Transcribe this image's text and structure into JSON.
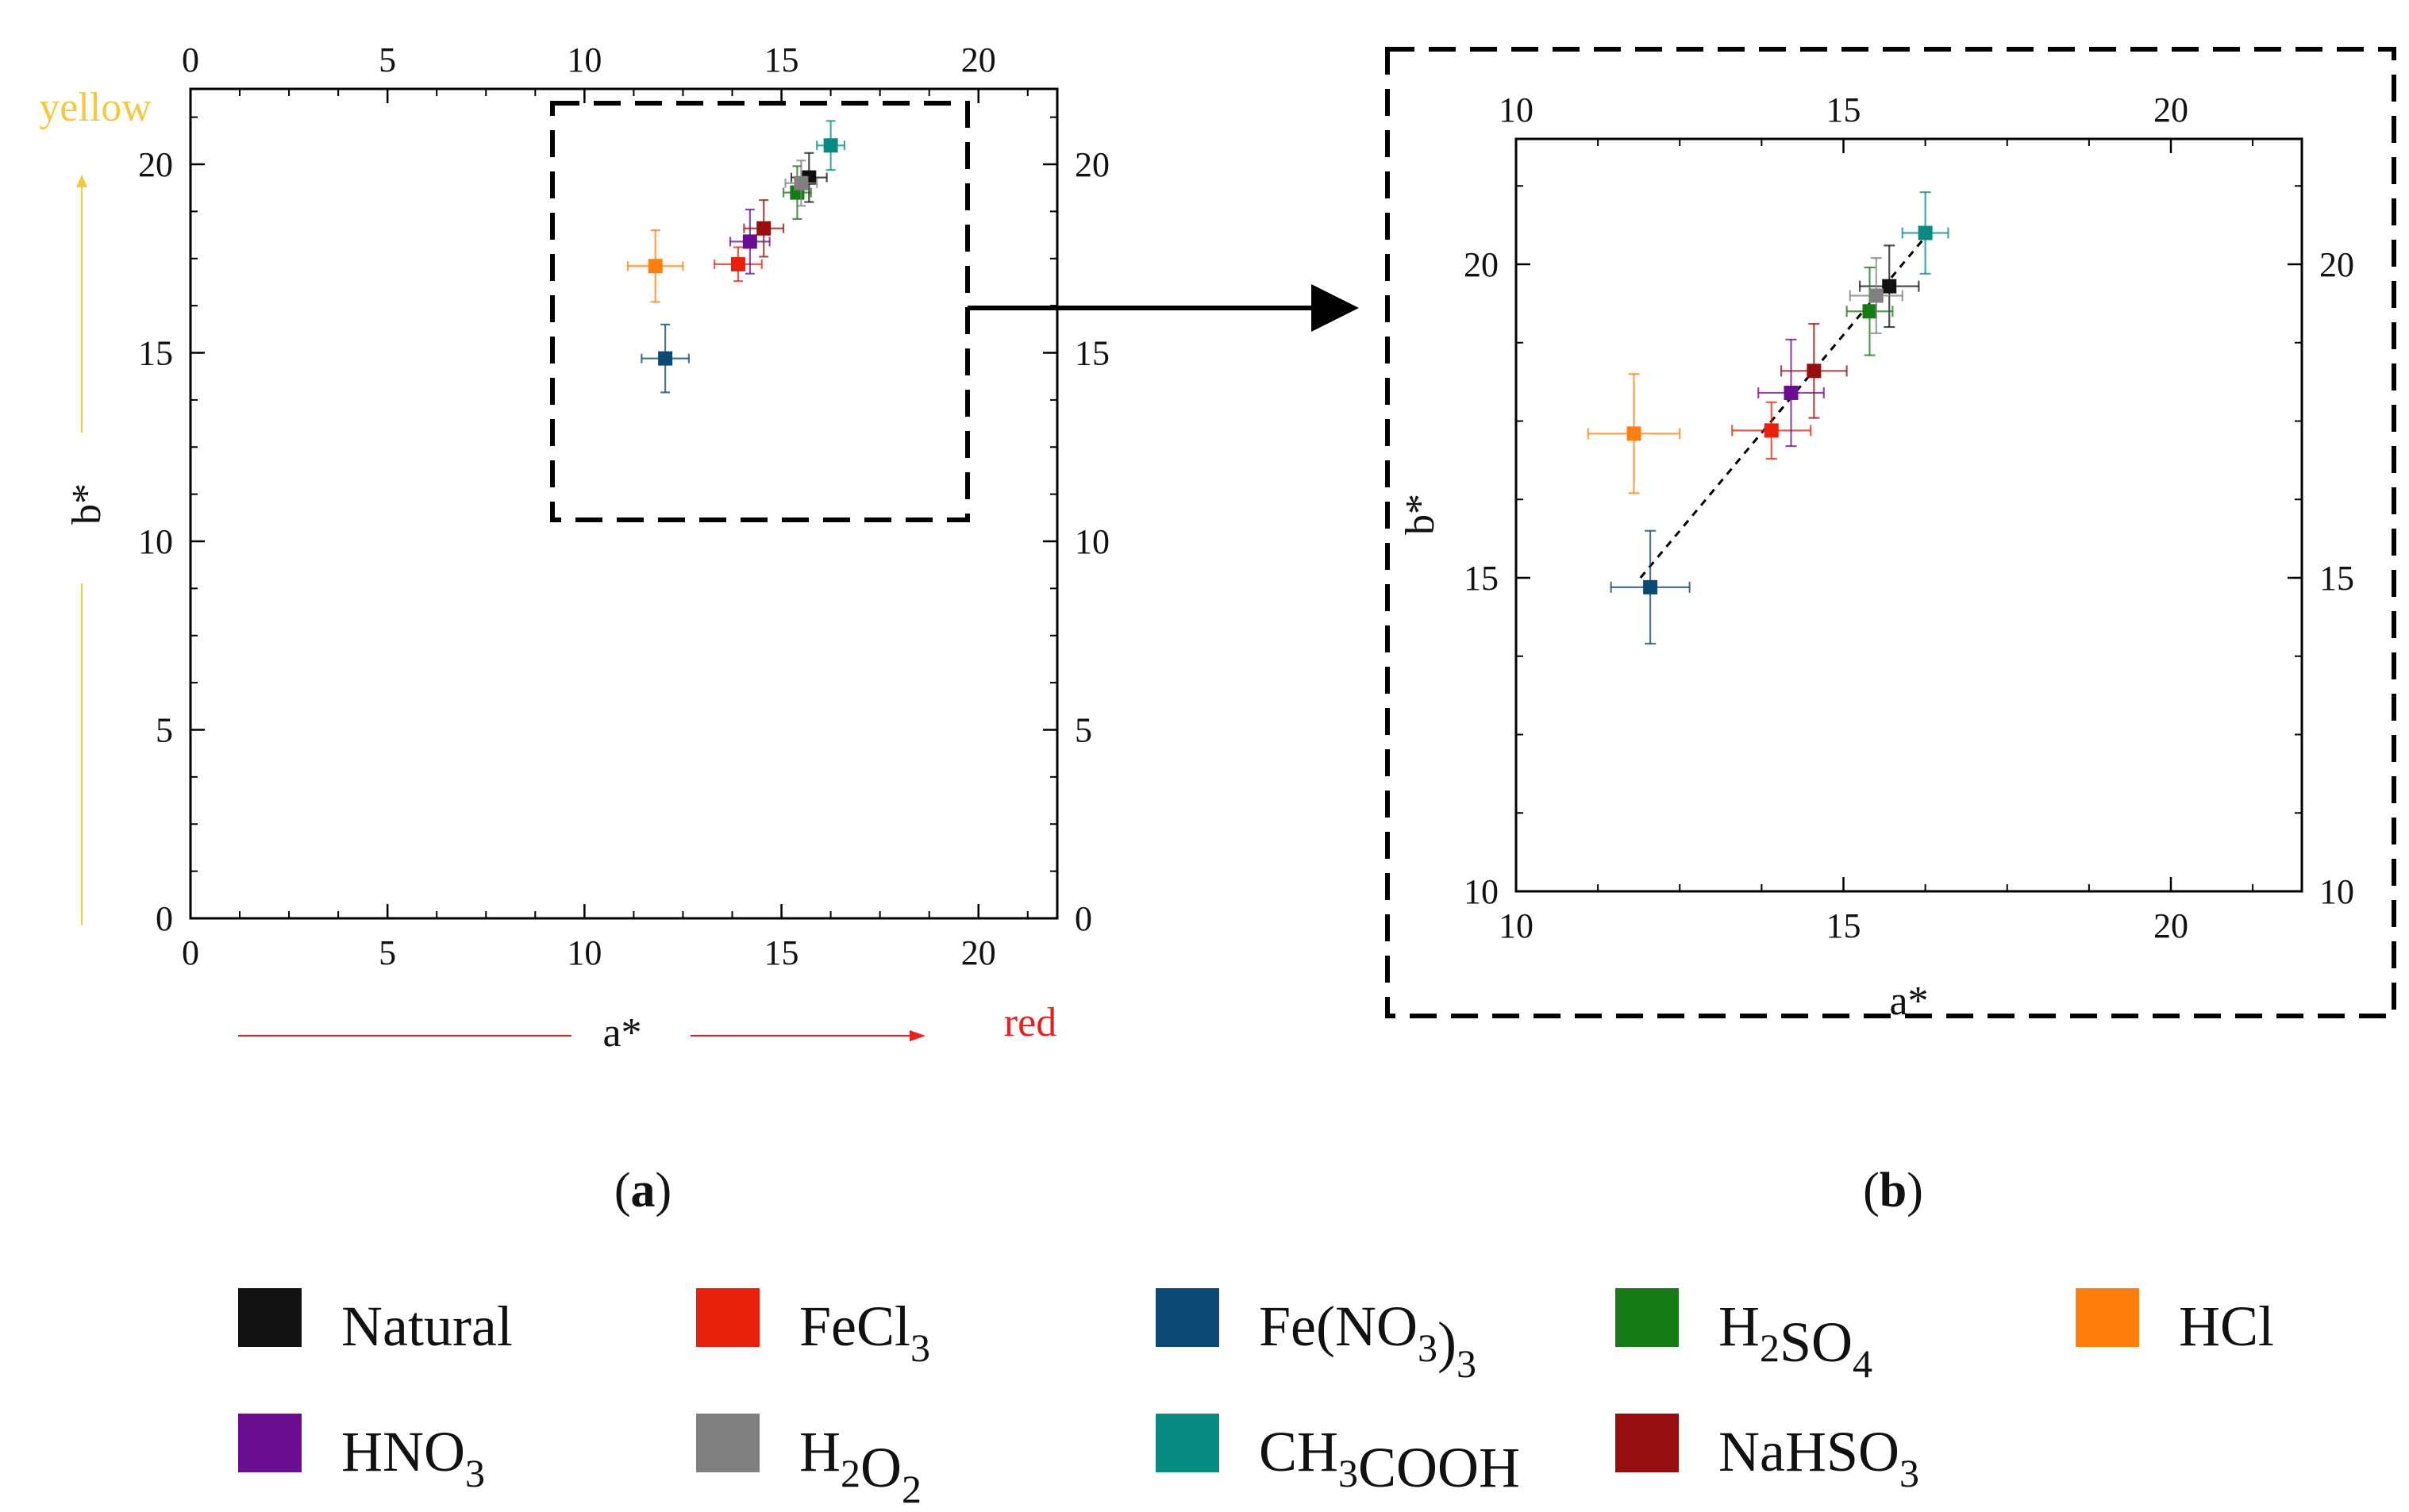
{
  "chart_data": [
    {
      "panel": "a",
      "label_open": "(",
      "label_letter": "a",
      "label_close": ")",
      "type": "scatter",
      "xlabel": "a*",
      "ylabel": "b*",
      "xlim": [
        0,
        22
      ],
      "ylim": [
        0,
        22
      ],
      "xticks": [
        0,
        5,
        10,
        15,
        20
      ],
      "yticks": [
        0,
        5,
        10,
        15,
        20
      ],
      "x_direction_label": "red",
      "x_direction_color": "#e82020",
      "y_direction_label": "yellow",
      "y_direction_color": "#f5c842",
      "zoom_region": {
        "x": [
          9.2,
          19.8
        ],
        "y": [
          10.6,
          21.6
        ]
      }
    },
    {
      "panel": "b",
      "label_open": "(",
      "label_letter": "b",
      "label_close": ")",
      "type": "scatter",
      "xlabel": "a*",
      "ylabel": "b*",
      "xlim": [
        10,
        22
      ],
      "ylim": [
        10,
        22
      ],
      "xticks": [
        10,
        15,
        20
      ],
      "yticks": [
        10,
        15,
        20
      ],
      "trendline": {
        "x": [
          11.9,
          16.3
        ],
        "y": [
          15.0,
          20.5
        ],
        "style": "dashed"
      }
    }
  ],
  "series": [
    {
      "name": "Natural",
      "color": "#111111",
      "a": 15.7,
      "b": 19.65,
      "a_err": 0.45,
      "b_err": 0.65
    },
    {
      "name": "FeCl3",
      "color": "#e8200c",
      "a": 13.9,
      "b": 17.35,
      "a_err": 0.6,
      "b_err": 0.45
    },
    {
      "name": "Fe(NO3)3",
      "color": "#0d4a73",
      "a": 12.05,
      "b": 14.85,
      "a_err": 0.6,
      "b_err": 0.9
    },
    {
      "name": "H2SO4",
      "color": "#167a16",
      "a": 15.4,
      "b": 19.25,
      "a_err": 0.35,
      "b_err": 0.7
    },
    {
      "name": "HCl",
      "color": "#ff7f0e",
      "a": 11.8,
      "b": 17.3,
      "a_err": 0.7,
      "b_err": 0.95
    },
    {
      "name": "HNO3",
      "color": "#6a0d91",
      "a": 14.2,
      "b": 17.95,
      "a_err": 0.5,
      "b_err": 0.85
    },
    {
      "name": "H2O2",
      "color": "#808080",
      "a": 15.5,
      "b": 19.5,
      "a_err": 0.4,
      "b_err": 0.6
    },
    {
      "name": "CH3COOH",
      "color": "#0a8a84",
      "a": 16.25,
      "b": 20.5,
      "a_err": 0.35,
      "b_err": 0.65
    },
    {
      "name": "NaHSO3",
      "color": "#960e0e",
      "a": 14.55,
      "b": 18.3,
      "a_err": 0.5,
      "b_err": 0.75
    }
  ],
  "legend": [
    {
      "key": "Natural",
      "parts": [
        "Natural"
      ],
      "color": "#111111"
    },
    {
      "key": "FeCl3",
      "parts": [
        "FeCl",
        "3"
      ],
      "color": "#e8200c"
    },
    {
      "key": "Fe(NO3)3",
      "parts": [
        "Fe(NO",
        "3",
        ")",
        "3"
      ],
      "color": "#0d4a73"
    },
    {
      "key": "H2SO4",
      "parts": [
        "H",
        "2",
        "SO",
        "4"
      ],
      "color": "#167a16"
    },
    {
      "key": "HCl",
      "parts": [
        "HCl"
      ],
      "color": "#ff7f0e"
    },
    {
      "key": "HNO3",
      "parts": [
        "HNO",
        "3"
      ],
      "color": "#6a0d91"
    },
    {
      "key": "H2O2",
      "parts": [
        "H",
        "2",
        "O",
        "2"
      ],
      "color": "#808080"
    },
    {
      "key": "CH3COOH",
      "parts": [
        "CH",
        "3",
        "COOH"
      ],
      "color": "#0a8a84"
    },
    {
      "key": "NaHSO3",
      "parts": [
        "NaHSO",
        "3"
      ],
      "color": "#960e0e"
    }
  ]
}
